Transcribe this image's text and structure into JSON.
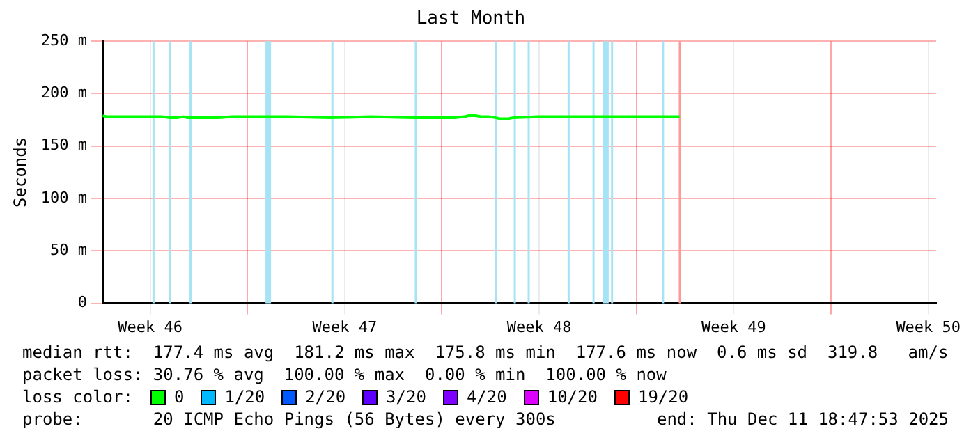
{
  "chart_data": {
    "type": "line",
    "title": "Last Month",
    "ylabel": "Seconds",
    "x": [
      "2025-11-11T19:00",
      "2025-11-11T22:48",
      "2025-11-13T22:48",
      "2025-11-14T04:48",
      "2025-11-14T10:48",
      "2025-11-14T16:48",
      "2025-11-14T20:24",
      "2025-11-15T08:24",
      "2025-11-15T22:48",
      "2025-11-16T10:48",
      "2025-11-18T10:48",
      "2025-11-19T22:48",
      "2025-11-21T10:48",
      "2025-11-22T22:48",
      "2025-11-23T04:48",
      "2025-11-24T10:48",
      "2025-11-24T19:12",
      "2025-11-24T22:48",
      "2025-11-25T04:48",
      "2025-11-25T10:48",
      "2025-11-25T16:48",
      "2025-11-25T22:48",
      "2025-11-26T02:24",
      "2025-11-26T08:24",
      "2025-11-26T13:12",
      "2025-11-27T10:48",
      "2025-11-29T10:48",
      "2025-12-02T13:12"
    ],
    "series": [
      {
        "name": "0",
        "color": "#00ff00",
        "values": [
          179,
          178,
          178,
          177,
          177,
          178,
          177,
          177,
          177,
          178,
          178,
          177,
          178,
          177,
          177,
          177,
          178,
          179,
          179,
          178,
          178,
          177,
          176,
          176,
          177,
          178,
          178,
          178
        ]
      },
      {
        "name": "1/20",
        "color": "#00b8ff",
        "values": [
          null,
          null,
          null,
          null,
          null,
          null,
          null,
          null,
          null,
          null,
          null,
          null,
          null,
          null,
          null,
          null,
          null,
          null,
          null,
          null,
          null,
          null,
          null,
          null,
          null,
          null,
          null,
          null
        ]
      },
      {
        "name": "2/20",
        "color": "#0059ff",
        "values": [
          null,
          null,
          null,
          null,
          null,
          null,
          null,
          null,
          null,
          null,
          null,
          null,
          null,
          null,
          null,
          null,
          null,
          null,
          null,
          null,
          null,
          null,
          null,
          null,
          null,
          null,
          null,
          null
        ]
      },
      {
        "name": "3/20",
        "color": "#5e00ff",
        "values": [
          null,
          null,
          null,
          null,
          null,
          null,
          null,
          null,
          null,
          null,
          null,
          null,
          null,
          null,
          null,
          null,
          null,
          null,
          null,
          null,
          null,
          null,
          null,
          null,
          null,
          null,
          null,
          null
        ]
      },
      {
        "name": "4/20",
        "color": "#7e00ff",
        "values": [
          null,
          null,
          null,
          null,
          null,
          null,
          null,
          null,
          null,
          null,
          null,
          null,
          null,
          null,
          null,
          null,
          null,
          null,
          null,
          null,
          null,
          null,
          null,
          null,
          null,
          null,
          null,
          null
        ]
      },
      {
        "name": "10/20",
        "color": "#dd00ff",
        "values": [
          null,
          null,
          null,
          null,
          null,
          null,
          null,
          null,
          null,
          null,
          null,
          null,
          null,
          null,
          null,
          null,
          null,
          null,
          null,
          null,
          null,
          null,
          null,
          null,
          null,
          null,
          null,
          null
        ]
      },
      {
        "name": "19/20",
        "color": "#ff0000",
        "values": [
          null,
          null,
          null,
          null,
          null,
          null,
          null,
          null,
          null,
          null,
          null,
          null,
          null,
          null,
          null,
          null,
          null,
          null,
          null,
          null,
          null,
          null,
          null,
          null,
          null,
          null,
          null,
          null
        ]
      }
    ],
    "legend": "bottom",
    "legend_title": "loss color:",
    "xlim": [
      "2025-11-11T18:47",
      "2025-12-11T18:47"
    ],
    "xticks": [
      {
        "value": "2025-11-13T12:00",
        "label": "Week 46"
      },
      {
        "value": "2025-11-17T00:00",
        "label": null
      },
      {
        "value": "2025-11-20T12:00",
        "label": "Week 47"
      },
      {
        "value": "2025-11-24T00:00",
        "label": null
      },
      {
        "value": "2025-11-27T12:00",
        "label": "Week 48"
      },
      {
        "value": "2025-12-01T00:00",
        "label": null
      },
      {
        "value": "2025-12-04T12:00",
        "label": "Week 49"
      },
      {
        "value": "2025-12-08T00:00",
        "label": null
      },
      {
        "value": "2025-12-11T12:00",
        "label": "Week 50"
      }
    ],
    "ylim": [
      0,
      250
    ],
    "yticks": [
      0,
      {
        "value": 50,
        "label": "50 m"
      },
      {
        "value": 100,
        "label": "100 m"
      },
      {
        "value": 150,
        "label": "150 m"
      },
      {
        "value": 200,
        "label": "200 m"
      },
      {
        "value": 250,
        "label": "250 m"
      }
    ],
    "grid": true,
    "marker": "none",
    "line_style": "solid",
    "bands": [
      {
        "axis": "x",
        "from": "2025-11-13T14:00",
        "to": "2025-11-13T15:00",
        "color": "#a6e3f5"
      },
      {
        "axis": "x",
        "from": "2025-11-14T04:00",
        "to": "2025-11-14T05:30",
        "color": "#a6e3f5"
      },
      {
        "axis": "x",
        "from": "2025-11-14T22:00",
        "to": "2025-11-14T23:30",
        "color": "#a6e3f5"
      },
      {
        "axis": "x",
        "from": "2025-11-17T15:36",
        "to": "2025-11-17T20:24",
        "color": "#a6e3f5"
      },
      {
        "axis": "x",
        "from": "2025-11-20T00:30",
        "to": "2025-11-20T02:00",
        "color": "#a6e3f5"
      },
      {
        "axis": "x",
        "from": "2025-11-23T00:30",
        "to": "2025-11-23T02:00",
        "color": "#a6e3f5"
      },
      {
        "axis": "x",
        "from": "2025-11-25T22:00",
        "to": "2025-11-25T23:30",
        "color": "#a6e3f5"
      },
      {
        "axis": "x",
        "from": "2025-11-26T14:00",
        "to": "2025-11-26T15:00",
        "color": "#a6e3f5"
      },
      {
        "axis": "x",
        "from": "2025-11-27T02:00",
        "to": "2025-11-27T03:00",
        "color": "#a6e3f5"
      },
      {
        "axis": "x",
        "from": "2025-11-28T12:30",
        "to": "2025-11-28T14:00",
        "color": "#a6e3f5"
      },
      {
        "axis": "x",
        "from": "2025-11-29T10:00",
        "to": "2025-11-29T11:30",
        "color": "#a6e3f5"
      },
      {
        "axis": "x",
        "from": "2025-11-29T19:12",
        "to": "2025-11-30T00:00",
        "color": "#a6e3f5"
      },
      {
        "axis": "x",
        "from": "2025-11-30T02:00",
        "to": "2025-11-30T03:00",
        "color": "#a6e3f5"
      },
      {
        "axis": "x",
        "from": "2025-12-01T22:00",
        "to": "2025-12-01T23:30",
        "color": "#a6e3f5"
      },
      {
        "axis": "x",
        "from": "2025-12-02T12:30",
        "to": "2025-12-02T14:00",
        "color": "#ff9999"
      }
    ],
    "annotations": [
      "median rtt:  177.4 ms avg  181.2 ms max  175.8 ms min  177.6 ms now  0.6 ms sd  319.8   am/s",
      "packet loss: 30.76 % avg  100.00 % max  0.00 % min  100.00 % now",
      "probe:       20 ICMP Echo Pings (56 Bytes) every 300s",
      "end: Thu Dec 11 18:47:53 2025"
    ]
  }
}
